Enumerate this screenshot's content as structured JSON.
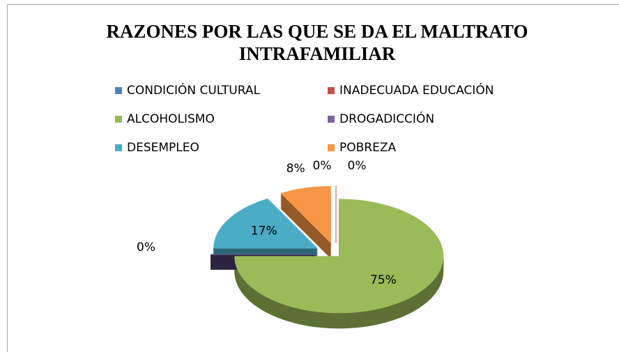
{
  "chart_data": {
    "type": "pie",
    "title": "RAZONES POR LAS QUE SE DA EL MALTRATO INTRAFAMILIAR",
    "categories": [
      "CONDICIÓN CULTURAL",
      "INADECUADA EDUCACIÓN",
      "ALCOHOLISMO",
      "DROGADICCIÓN",
      "DESEMPLEO",
      "POBREZA"
    ],
    "values": [
      0,
      0,
      75,
      0,
      17,
      8
    ],
    "value_labels": [
      "0%",
      "0%",
      "75%",
      "0%",
      "17%",
      "8%"
    ],
    "colors": [
      "#4f81bd",
      "#c0504d",
      "#9bbb59",
      "#8064a2",
      "#4bacc6",
      "#f79646"
    ],
    "legend": "top"
  }
}
